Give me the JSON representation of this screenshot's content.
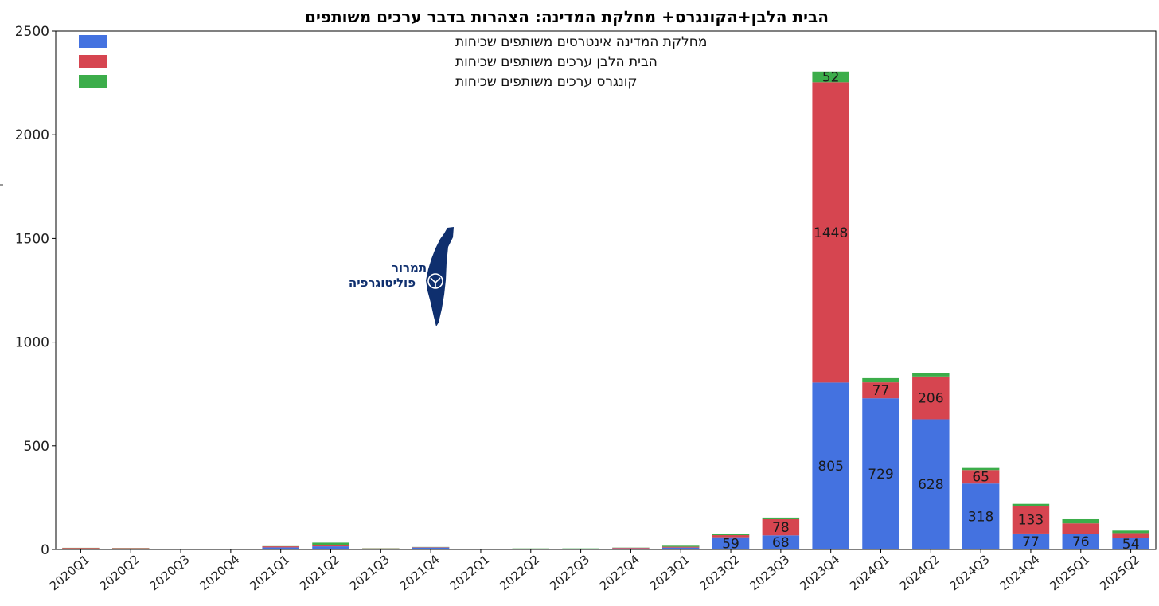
{
  "chart_data": {
    "type": "bar",
    "stacked": true,
    "title": "הבית הלבן+הקונגרס+ מחלקת המדינה: הצהרות בדבר ערכים משותפים",
    "categories": [
      "2020Q1",
      "2020Q2",
      "2020Q3",
      "2020Q4",
      "2021Q1",
      "2021Q2",
      "2021Q3",
      "2021Q4",
      "2022Q1",
      "2022Q2",
      "2022Q3",
      "2022Q4",
      "2023Q1",
      "2023Q2",
      "2023Q3",
      "2023Q4",
      "2024Q1",
      "2024Q2",
      "2024Q3",
      "2024Q4",
      "2025Q1",
      "2025Q2"
    ],
    "ylim": [
      0,
      2500
    ],
    "yticks": [
      0,
      500,
      1000,
      1500,
      2000,
      2500
    ],
    "grid": false,
    "legend_position": "top-left",
    "series": [
      {
        "name": "מחלקת המדינה אינטרסים משותפים שכיחות",
        "color": "#4472e0",
        "values": [
          1,
          4,
          1,
          1,
          10,
          15,
          2,
          9,
          1,
          1,
          1,
          5,
          9,
          59,
          68,
          805,
          729,
          628,
          318,
          77,
          76,
          54
        ]
      },
      {
        "name": "הבית הלבן ערכים משותפים שכיחות",
        "color": "#d64550",
        "values": [
          6,
          2,
          1,
          1,
          5,
          8,
          3,
          2,
          1,
          3,
          1,
          3,
          4,
          10,
          78,
          1448,
          77,
          206,
          65,
          133,
          50,
          25
        ]
      },
      {
        "name": "קונגרס ערכים משותפים שכיחות",
        "color": "#3cad4a",
        "values": [
          1,
          1,
          1,
          1,
          1,
          10,
          1,
          1,
          1,
          1,
          3,
          1,
          5,
          5,
          8,
          52,
          20,
          15,
          10,
          10,
          20,
          12
        ]
      }
    ],
    "data_labels": [
      {
        "series": 0,
        "category": "2023Q2",
        "text": "59"
      },
      {
        "series": 0,
        "category": "2023Q3",
        "text": "68"
      },
      {
        "series": 1,
        "category": "2023Q3",
        "text": "78"
      },
      {
        "series": 0,
        "category": "2023Q4",
        "text": "805"
      },
      {
        "series": 1,
        "category": "2023Q4",
        "text": "1448"
      },
      {
        "series": 2,
        "category": "2023Q4",
        "text": "52"
      },
      {
        "series": 0,
        "category": "2024Q1",
        "text": "729"
      },
      {
        "series": 1,
        "category": "2024Q1",
        "text": "77"
      },
      {
        "series": 0,
        "category": "2024Q2",
        "text": "628"
      },
      {
        "series": 1,
        "category": "2024Q2",
        "text": "206"
      },
      {
        "series": 0,
        "category": "2024Q3",
        "text": "318"
      },
      {
        "series": 1,
        "category": "2024Q3",
        "text": "65"
      },
      {
        "series": 0,
        "category": "2024Q4",
        "text": "77"
      },
      {
        "series": 1,
        "category": "2024Q4",
        "text": "133"
      },
      {
        "series": 0,
        "category": "2025Q1",
        "text": "76"
      },
      {
        "series": 0,
        "category": "2025Q2",
        "text": "54"
      }
    ]
  },
  "watermark": {
    "line1": "תמרור",
    "line2": "פוליטוגרפיה",
    "color": "#0f2f6e"
  }
}
